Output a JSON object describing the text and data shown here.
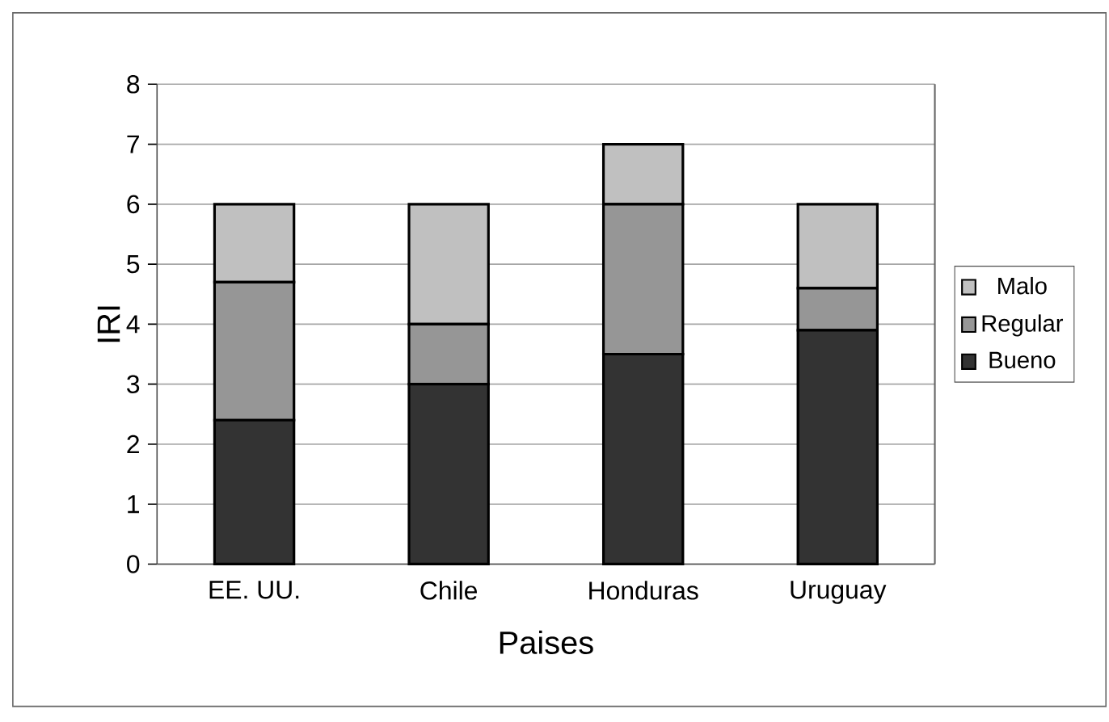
{
  "chart_data": {
    "type": "bar",
    "stacked": true,
    "xlabel": "Paises",
    "ylabel": "IRI",
    "categories": [
      "EE. UU.",
      "Chile",
      "Honduras",
      "Uruguay"
    ],
    "series": [
      {
        "name": "Bueno",
        "color": "#333333",
        "values": [
          2.4,
          3,
          3.5,
          3.9
        ]
      },
      {
        "name": "Regular",
        "color": "#969696",
        "values": [
          2.3,
          1,
          2.5,
          0.7
        ]
      },
      {
        "name": "Malo",
        "color": "#c0c0c0",
        "values": [
          1.3,
          2,
          1,
          1.4
        ]
      }
    ],
    "ylim": [
      0,
      8
    ],
    "yticks": [
      0,
      1,
      2,
      3,
      4,
      5,
      6,
      7,
      8
    ],
    "grid": "y",
    "legend": "right"
  }
}
